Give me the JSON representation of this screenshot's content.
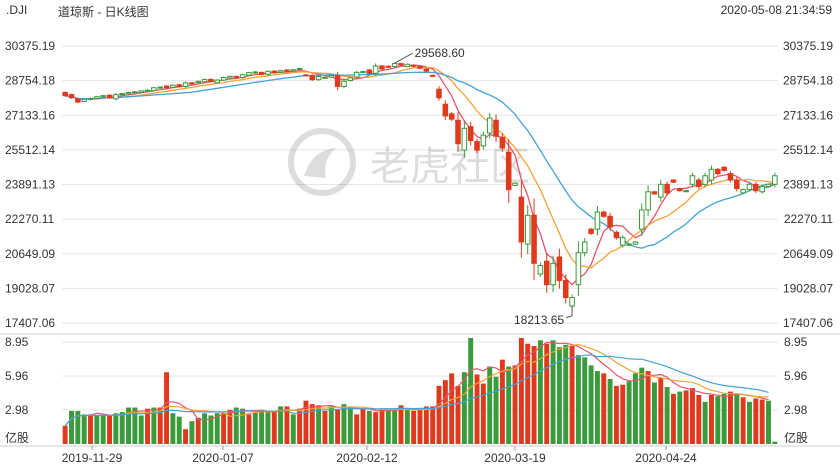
{
  "header": {
    "symbol": ".DJI",
    "name": "道琼斯 - 日K线图",
    "timestamp": "2020-05-08 21:34:59"
  },
  "watermark": "老虎社区",
  "colors": {
    "up": "#3a9b3a",
    "down": "#e03a1e",
    "ma_short": "#e8546a",
    "ma_mid": "#f3a23b",
    "ma_long": "#43a2d8",
    "grid": "#e6e6e6",
    "axis_text": "#333333"
  },
  "chart_data": [
    {
      "type": "candlestick",
      "y_ticks": [
        "30375.19",
        "28754.18",
        "27133.16",
        "25512.14",
        "23891.13",
        "22270.11",
        "20649.09",
        "19028.07",
        "17407.06"
      ],
      "ylim": [
        17407.06,
        30375.19
      ],
      "annotations": [
        {
          "label": "29568.60",
          "value": 29568.6,
          "x_date": "2020-02-12"
        },
        {
          "label": "18213.65",
          "value": 18213.65,
          "x_date": "2020-03-23"
        }
      ],
      "candles": [
        [
          28200,
          28050
        ],
        [
          28100,
          27950
        ],
        [
          27900,
          27750
        ],
        [
          27780,
          27880
        ],
        [
          27870,
          27920
        ],
        [
          27920,
          28000
        ],
        [
          28000,
          28050
        ],
        [
          28070,
          27950
        ],
        [
          27900,
          28100
        ],
        [
          28100,
          28150
        ],
        [
          28140,
          28200
        ],
        [
          28200,
          28230
        ],
        [
          28200,
          28270
        ],
        [
          28260,
          28300
        ],
        [
          28290,
          28420
        ],
        [
          28420,
          28450
        ],
        [
          28500,
          28420
        ],
        [
          28440,
          28540
        ],
        [
          28560,
          28480
        ],
        [
          28480,
          28650
        ],
        [
          28650,
          28620
        ],
        [
          28660,
          28720
        ],
        [
          28700,
          28810
        ],
        [
          28810,
          28720
        ],
        [
          28650,
          28780
        ],
        [
          28780,
          28900
        ],
        [
          28880,
          28950
        ],
        [
          28950,
          28910
        ],
        [
          28900,
          29030
        ],
        [
          29010,
          29130
        ],
        [
          29110,
          29160
        ],
        [
          29140,
          29050
        ],
        [
          29050,
          29190
        ],
        [
          29200,
          29120
        ],
        [
          29150,
          29220
        ],
        [
          29250,
          29190
        ],
        [
          29200,
          29260
        ],
        [
          29300,
          29320
        ],
        [
          29020,
          28990
        ],
        [
          28990,
          28800
        ],
        [
          28800,
          28950
        ],
        [
          28880,
          28910
        ],
        [
          28910,
          28990
        ],
        [
          28990,
          28480
        ],
        [
          28480,
          28730
        ],
        [
          28760,
          28890
        ],
        [
          28920,
          29140
        ],
        [
          29160,
          29180
        ],
        [
          29250,
          29090
        ],
        [
          29100,
          29440
        ],
        [
          29440,
          29300
        ],
        [
          29430,
          29380
        ],
        [
          29420,
          29550
        ],
        [
          29550,
          29480
        ],
        [
          29420,
          29520
        ],
        [
          29480,
          29420
        ],
        [
          29410,
          29330
        ],
        [
          29300,
          29200
        ],
        [
          29000,
          28990
        ],
        [
          28350,
          27950
        ],
        [
          27650,
          27100
        ],
        [
          27200,
          26950
        ],
        [
          26900,
          25800
        ],
        [
          25500,
          26520
        ],
        [
          26600,
          25950
        ],
        [
          25900,
          25500
        ],
        [
          25700,
          26200
        ],
        [
          26300,
          27000
        ],
        [
          26900,
          26150
        ],
        [
          26100,
          25600
        ],
        [
          25400,
          23650
        ],
        [
          23850,
          23950
        ],
        [
          23300,
          21200
        ],
        [
          21100,
          22450
        ],
        [
          22450,
          20200
        ],
        [
          19700,
          20100
        ],
        [
          20300,
          19200
        ],
        [
          19200,
          20200
        ],
        [
          20500,
          19400
        ],
        [
          19400,
          18600
        ],
        [
          18200,
          18600
        ],
        [
          19200,
          20700
        ],
        [
          20700,
          21200
        ],
        [
          21800,
          21600
        ],
        [
          21800,
          22600
        ],
        [
          22600,
          22400
        ],
        [
          22400,
          21900
        ],
        [
          21650,
          21400
        ],
        [
          21050,
          21400
        ],
        [
          21050,
          21100
        ],
        [
          21100,
          21200
        ],
        [
          21800,
          22700
        ],
        [
          22700,
          23550
        ],
        [
          23550,
          23450
        ],
        [
          23300,
          23900
        ],
        [
          23900,
          23500
        ],
        [
          24100,
          24000
        ],
        [
          23700,
          23600
        ],
        [
          23600,
          23600
        ],
        [
          23900,
          24300
        ],
        [
          24100,
          23800
        ],
        [
          23900,
          24300
        ],
        [
          24100,
          24600
        ],
        [
          24600,
          24400
        ],
        [
          24700,
          24550
        ],
        [
          24400,
          24100
        ],
        [
          24100,
          23700
        ],
        [
          23500,
          23650
        ],
        [
          23650,
          23900
        ],
        [
          23900,
          23600
        ],
        [
          23550,
          23800
        ],
        [
          23800,
          23900
        ],
        [
          23900,
          24300
        ]
      ]
    },
    {
      "type": "bar",
      "y_ticks": [
        "8.95",
        "5.96",
        "2.98"
      ],
      "unit_label": "亿股",
      "ylim": [
        0,
        8.95
      ],
      "x_tick_labels": [
        "2019-11-29",
        "2020-01-07",
        "2020-02-12",
        "2020-03-19",
        "2020-04-24"
      ],
      "volumes": [
        [
          1.6,
          "d"
        ],
        [
          2.9,
          "u"
        ],
        [
          2.9,
          "u"
        ],
        [
          2.6,
          "u"
        ],
        [
          2.6,
          "d"
        ],
        [
          2.5,
          "u"
        ],
        [
          2.5,
          "u"
        ],
        [
          2.5,
          "d"
        ],
        [
          2.7,
          "u"
        ],
        [
          2.8,
          "u"
        ],
        [
          3.2,
          "u"
        ],
        [
          3.2,
          "u"
        ],
        [
          2.5,
          "u"
        ],
        [
          3.1,
          "d"
        ],
        [
          3.2,
          "u"
        ],
        [
          3.2,
          "d"
        ],
        [
          6.3,
          "d"
        ],
        [
          2.7,
          "u"
        ],
        [
          2.4,
          "u"
        ],
        [
          1.3,
          "d"
        ],
        [
          2.0,
          "u"
        ],
        [
          2.3,
          "d"
        ],
        [
          2.7,
          "u"
        ],
        [
          2.5,
          "u"
        ],
        [
          2.7,
          "u"
        ],
        [
          2.7,
          "d"
        ],
        [
          3.0,
          "d"
        ],
        [
          3.2,
          "u"
        ],
        [
          3.1,
          "u"
        ],
        [
          2.6,
          "d"
        ],
        [
          2.8,
          "u"
        ],
        [
          3.0,
          "u"
        ],
        [
          2.8,
          "u"
        ],
        [
          2.8,
          "d"
        ],
        [
          3.3,
          "u"
        ],
        [
          3.3,
          "d"
        ],
        [
          2.6,
          "u"
        ],
        [
          3.1,
          "d"
        ],
        [
          3.8,
          "d"
        ],
        [
          3.5,
          "d"
        ],
        [
          3.4,
          "u"
        ],
        [
          2.9,
          "d"
        ],
        [
          3.3,
          "u"
        ],
        [
          3.0,
          "d"
        ],
        [
          3.5,
          "u"
        ],
        [
          3.3,
          "u"
        ],
        [
          2.6,
          "d"
        ],
        [
          3.1,
          "d"
        ],
        [
          2.9,
          "u"
        ],
        [
          2.8,
          "d"
        ],
        [
          3.0,
          "d"
        ],
        [
          2.9,
          "u"
        ],
        [
          3.1,
          "u"
        ],
        [
          3.4,
          "d"
        ],
        [
          3.0,
          "u"
        ],
        [
          2.9,
          "d"
        ],
        [
          3.0,
          "d"
        ],
        [
          3.3,
          "d"
        ],
        [
          3.3,
          "d"
        ],
        [
          5.1,
          "d"
        ],
        [
          5.6,
          "d"
        ],
        [
          6.2,
          "d"
        ],
        [
          5.1,
          "d"
        ],
        [
          6.3,
          "u"
        ],
        [
          9.3,
          "u"
        ],
        [
          6.1,
          "d"
        ],
        [
          5.3,
          "d"
        ],
        [
          6.8,
          "u"
        ],
        [
          5.9,
          "u"
        ],
        [
          7.4,
          "d"
        ],
        [
          6.8,
          "u"
        ],
        [
          6.9,
          "d"
        ],
        [
          9.3,
          "d"
        ],
        [
          8.8,
          "d"
        ],
        [
          8.6,
          "d"
        ],
        [
          9.1,
          "u"
        ],
        [
          8.8,
          "d"
        ],
        [
          9.1,
          "u"
        ],
        [
          8.5,
          "u"
        ],
        [
          8.7,
          "u"
        ],
        [
          8.6,
          "d"
        ],
        [
          7.8,
          "u"
        ],
        [
          7.6,
          "u"
        ],
        [
          6.9,
          "u"
        ],
        [
          6.4,
          "u"
        ],
        [
          6.2,
          "d"
        ],
        [
          5.7,
          "u"
        ],
        [
          5.1,
          "d"
        ],
        [
          5.2,
          "d"
        ],
        [
          5.5,
          "u"
        ],
        [
          6.2,
          "u"
        ],
        [
          6.7,
          "u"
        ],
        [
          6.4,
          "d"
        ],
        [
          5.4,
          "u"
        ],
        [
          5.8,
          "d"
        ],
        [
          5.0,
          "u"
        ],
        [
          4.4,
          "d"
        ],
        [
          4.6,
          "u"
        ],
        [
          4.7,
          "d"
        ],
        [
          4.9,
          "d"
        ],
        [
          4.3,
          "d"
        ],
        [
          3.7,
          "u"
        ],
        [
          4.3,
          "d"
        ],
        [
          4.2,
          "u"
        ],
        [
          4.4,
          "u"
        ],
        [
          4.6,
          "d"
        ],
        [
          4.4,
          "u"
        ],
        [
          4.1,
          "d"
        ],
        [
          3.7,
          "u"
        ],
        [
          4.0,
          "d"
        ],
        [
          3.9,
          "d"
        ],
        [
          3.8,
          "u"
        ],
        [
          0.2,
          "u"
        ]
      ]
    }
  ]
}
